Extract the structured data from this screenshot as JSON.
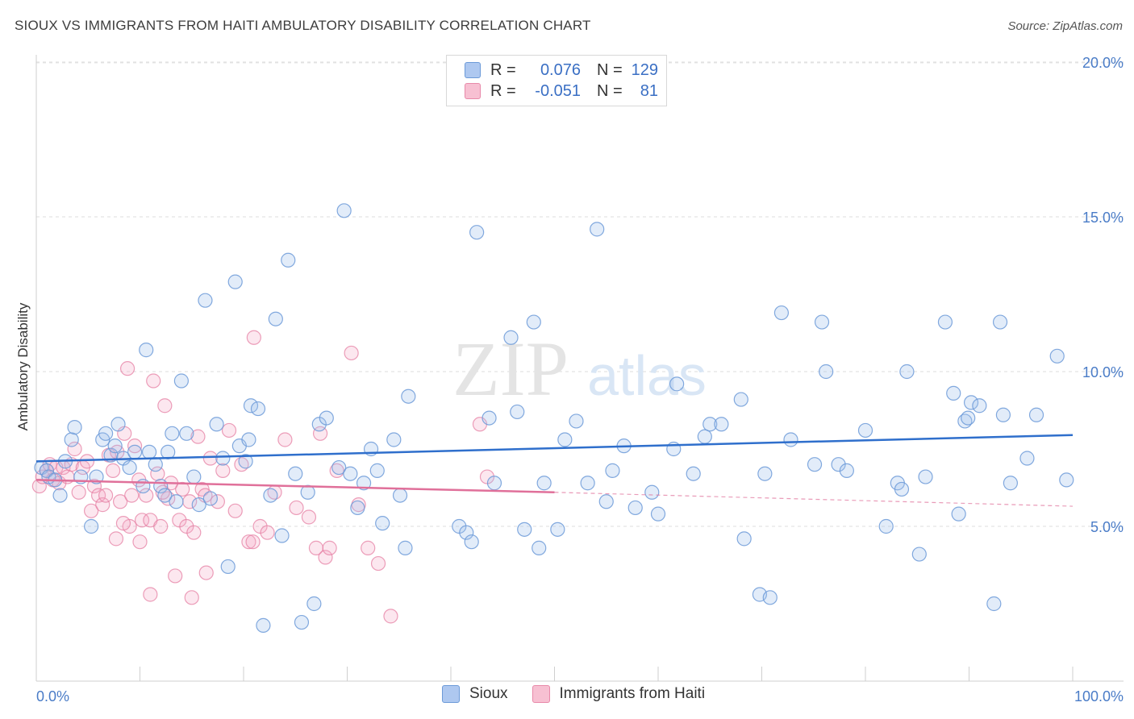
{
  "header": {
    "title": "SIOUX VS IMMIGRANTS FROM HAITI AMBULATORY DISABILITY CORRELATION CHART",
    "source": "Source: ZipAtlas.com"
  },
  "watermark": {
    "zip": "ZIP",
    "atlas": "atlas"
  },
  "legend": {
    "rows": [
      {
        "r_label": "R =",
        "r_value": "0.076",
        "n_label": "N =",
        "n_value": "129",
        "color": "#aec8f0",
        "border": "#6c9ad8"
      },
      {
        "r_label": "R =",
        "r_value": "-0.051",
        "n_label": "N =",
        "n_value": "81",
        "color": "#f7c0d2",
        "border": "#e889a9"
      }
    ]
  },
  "bottom_legend": [
    {
      "label": "Sioux",
      "color": "#aec8f0",
      "border": "#6c9ad8"
    },
    {
      "label": "Immigrants from Haiti",
      "color": "#f7c0d2",
      "border": "#e889a9"
    }
  ],
  "chart_data": {
    "type": "scatter",
    "title": "SIOUX VS IMMIGRANTS FROM HAITI AMBULATORY DISABILITY CORRELATION CHART",
    "xlabel": "",
    "ylabel": "Ambulatory Disability",
    "xlim": [
      0,
      100
    ],
    "ylim": [
      0,
      20
    ],
    "x_tick_labels": [
      "0.0%",
      "100.0%"
    ],
    "y_ticks": [
      5,
      10,
      15,
      20
    ],
    "y_tick_labels": [
      "5.0%",
      "10.0%",
      "15.0%",
      "20.0%"
    ],
    "grid": true,
    "legend_position": "top-center",
    "colors": {
      "sioux": "#6c9ad8",
      "haiti": "#e57fa3",
      "sioux_line": "#2f6fcc",
      "haiti_line": "#e0709a"
    },
    "series": [
      {
        "name": "Sioux",
        "trend": {
          "x": [
            0,
            100
          ],
          "y": [
            7.1,
            7.95
          ]
        },
        "points": [
          [
            0.5,
            6.9
          ],
          [
            1.0,
            6.8
          ],
          [
            1.2,
            6.6
          ],
          [
            1.8,
            6.5
          ],
          [
            2.3,
            6.0
          ],
          [
            2.8,
            7.1
          ],
          [
            3.4,
            7.8
          ],
          [
            3.7,
            8.2
          ],
          [
            4.3,
            6.6
          ],
          [
            5.3,
            5.0
          ],
          [
            5.8,
            6.6
          ],
          [
            6.4,
            7.8
          ],
          [
            6.7,
            8.0
          ],
          [
            7.2,
            7.3
          ],
          [
            7.6,
            7.6
          ],
          [
            7.9,
            8.3
          ],
          [
            8.4,
            7.2
          ],
          [
            9.0,
            6.9
          ],
          [
            9.5,
            7.4
          ],
          [
            10.3,
            6.3
          ],
          [
            10.6,
            10.7
          ],
          [
            10.9,
            7.4
          ],
          [
            11.5,
            7.0
          ],
          [
            12.0,
            6.3
          ],
          [
            12.4,
            6.0
          ],
          [
            12.7,
            7.4
          ],
          [
            13.1,
            8.0
          ],
          [
            13.5,
            5.8
          ],
          [
            14.0,
            9.7
          ],
          [
            14.5,
            8.0
          ],
          [
            15.2,
            6.6
          ],
          [
            15.7,
            5.7
          ],
          [
            16.3,
            12.3
          ],
          [
            16.8,
            5.9
          ],
          [
            17.4,
            8.3
          ],
          [
            18.0,
            7.2
          ],
          [
            18.5,
            3.7
          ],
          [
            19.2,
            12.9
          ],
          [
            19.6,
            7.6
          ],
          [
            20.2,
            7.1
          ],
          [
            20.7,
            8.9
          ],
          [
            21.4,
            8.8
          ],
          [
            21.9,
            1.8
          ],
          [
            22.6,
            6.0
          ],
          [
            23.1,
            11.7
          ],
          [
            23.7,
            4.7
          ],
          [
            24.3,
            13.6
          ],
          [
            25.0,
            6.7
          ],
          [
            25.6,
            1.9
          ],
          [
            26.2,
            6.1
          ],
          [
            26.8,
            2.5
          ],
          [
            27.3,
            8.3
          ],
          [
            28.0,
            8.5
          ],
          [
            29.2,
            6.9
          ],
          [
            29.7,
            15.2
          ],
          [
            30.3,
            6.7
          ],
          [
            31.0,
            5.6
          ],
          [
            31.6,
            6.4
          ],
          [
            32.3,
            7.5
          ],
          [
            32.9,
            6.8
          ],
          [
            33.4,
            5.1
          ],
          [
            34.5,
            7.8
          ],
          [
            35.1,
            6.0
          ],
          [
            35.6,
            4.3
          ],
          [
            35.9,
            9.2
          ],
          [
            40.8,
            5.0
          ],
          [
            41.5,
            4.8
          ],
          [
            42.0,
            4.5
          ],
          [
            42.5,
            14.5
          ],
          [
            43.7,
            8.5
          ],
          [
            44.2,
            6.4
          ],
          [
            45.8,
            11.1
          ],
          [
            46.4,
            8.7
          ],
          [
            47.1,
            4.9
          ],
          [
            48.0,
            11.6
          ],
          [
            48.5,
            4.3
          ],
          [
            49.0,
            6.4
          ],
          [
            50.3,
            4.9
          ],
          [
            51.0,
            7.8
          ],
          [
            52.1,
            8.4
          ],
          [
            53.2,
            6.4
          ],
          [
            54.1,
            14.6
          ],
          [
            55.0,
            5.8
          ],
          [
            55.6,
            6.8
          ],
          [
            56.7,
            7.6
          ],
          [
            57.8,
            5.6
          ],
          [
            59.4,
            6.1
          ],
          [
            60.0,
            5.4
          ],
          [
            61.5,
            7.5
          ],
          [
            61.8,
            9.6
          ],
          [
            63.4,
            6.7
          ],
          [
            64.5,
            7.9
          ],
          [
            65.0,
            8.3
          ],
          [
            66.1,
            8.3
          ],
          [
            68.0,
            9.1
          ],
          [
            68.3,
            4.6
          ],
          [
            69.8,
            2.8
          ],
          [
            70.3,
            6.7
          ],
          [
            70.8,
            2.7
          ],
          [
            71.9,
            11.9
          ],
          [
            72.8,
            7.8
          ],
          [
            75.1,
            7.0
          ],
          [
            75.8,
            11.6
          ],
          [
            76.2,
            10.0
          ],
          [
            77.4,
            7.0
          ],
          [
            78.2,
            6.8
          ],
          [
            80.0,
            8.1
          ],
          [
            82.0,
            5.0
          ],
          [
            83.1,
            6.4
          ],
          [
            83.5,
            6.2
          ],
          [
            84.0,
            10.0
          ],
          [
            85.2,
            4.1
          ],
          [
            85.8,
            6.6
          ],
          [
            87.7,
            11.6
          ],
          [
            88.5,
            9.3
          ],
          [
            89.0,
            5.4
          ],
          [
            89.6,
            8.4
          ],
          [
            89.9,
            8.5
          ],
          [
            90.2,
            9.0
          ],
          [
            91.0,
            8.9
          ],
          [
            92.4,
            2.5
          ],
          [
            93.0,
            11.6
          ],
          [
            95.6,
            7.2
          ],
          [
            98.5,
            10.5
          ],
          [
            99.4,
            6.5
          ],
          [
            96.5,
            8.6
          ],
          [
            94.0,
            6.4
          ],
          [
            93.3,
            8.6
          ],
          [
            20.5,
            7.8
          ]
        ]
      },
      {
        "name": "Immigrants from Haiti",
        "trend": {
          "x": [
            0,
            50
          ],
          "y": [
            6.5,
            6.1
          ],
          "dashed_to": {
            "x": 100,
            "y": 5.65
          }
        },
        "points": [
          [
            0.3,
            6.3
          ],
          [
            0.6,
            6.6
          ],
          [
            1.0,
            6.8
          ],
          [
            1.3,
            7.0
          ],
          [
            1.6,
            6.5
          ],
          [
            1.9,
            6.9
          ],
          [
            2.2,
            6.4
          ],
          [
            2.6,
            6.9
          ],
          [
            3.0,
            6.6
          ],
          [
            3.4,
            7.0
          ],
          [
            3.7,
            7.5
          ],
          [
            4.1,
            6.1
          ],
          [
            4.5,
            6.9
          ],
          [
            4.9,
            7.1
          ],
          [
            5.3,
            5.5
          ],
          [
            5.6,
            6.3
          ],
          [
            6.0,
            6.0
          ],
          [
            6.4,
            5.7
          ],
          [
            6.7,
            6.0
          ],
          [
            7.0,
            7.3
          ],
          [
            7.4,
            6.8
          ],
          [
            7.8,
            7.4
          ],
          [
            8.1,
            5.8
          ],
          [
            8.5,
            8.0
          ],
          [
            8.8,
            10.1
          ],
          [
            9.2,
            6.0
          ],
          [
            9.5,
            7.6
          ],
          [
            9.9,
            6.5
          ],
          [
            10.2,
            5.2
          ],
          [
            10.6,
            6.0
          ],
          [
            11.0,
            5.2
          ],
          [
            11.3,
            9.7
          ],
          [
            11.7,
            6.7
          ],
          [
            12.0,
            5.0
          ],
          [
            12.4,
            8.9
          ],
          [
            12.7,
            5.9
          ],
          [
            13.0,
            6.4
          ],
          [
            13.4,
            3.4
          ],
          [
            13.8,
            5.2
          ],
          [
            14.1,
            6.2
          ],
          [
            14.5,
            5.0
          ],
          [
            14.8,
            5.8
          ],
          [
            15.2,
            4.8
          ],
          [
            15.6,
            7.9
          ],
          [
            16.0,
            6.2
          ],
          [
            16.3,
            6.0
          ],
          [
            16.8,
            7.2
          ],
          [
            17.5,
            5.8
          ],
          [
            18.0,
            6.8
          ],
          [
            18.6,
            8.1
          ],
          [
            19.2,
            5.5
          ],
          [
            19.8,
            7.0
          ],
          [
            20.5,
            4.5
          ],
          [
            21.0,
            11.1
          ],
          [
            21.6,
            5.0
          ],
          [
            22.3,
            4.8
          ],
          [
            23.0,
            6.1
          ],
          [
            24.0,
            7.8
          ],
          [
            25.1,
            5.6
          ],
          [
            26.3,
            5.3
          ],
          [
            27.0,
            4.3
          ],
          [
            27.4,
            8.0
          ],
          [
            27.9,
            4.0
          ],
          [
            28.3,
            4.3
          ],
          [
            29.0,
            6.8
          ],
          [
            30.4,
            10.6
          ],
          [
            31.1,
            5.7
          ],
          [
            32.0,
            4.3
          ],
          [
            33.0,
            3.8
          ],
          [
            34.2,
            2.1
          ],
          [
            42.8,
            8.3
          ],
          [
            43.5,
            6.6
          ],
          [
            20.9,
            4.5
          ],
          [
            15.0,
            2.7
          ],
          [
            10.0,
            4.5
          ],
          [
            9.0,
            5.0
          ],
          [
            11.0,
            2.8
          ],
          [
            16.4,
            3.5
          ],
          [
            12.2,
            6.1
          ],
          [
            8.4,
            5.1
          ],
          [
            7.7,
            4.6
          ]
        ]
      }
    ]
  }
}
